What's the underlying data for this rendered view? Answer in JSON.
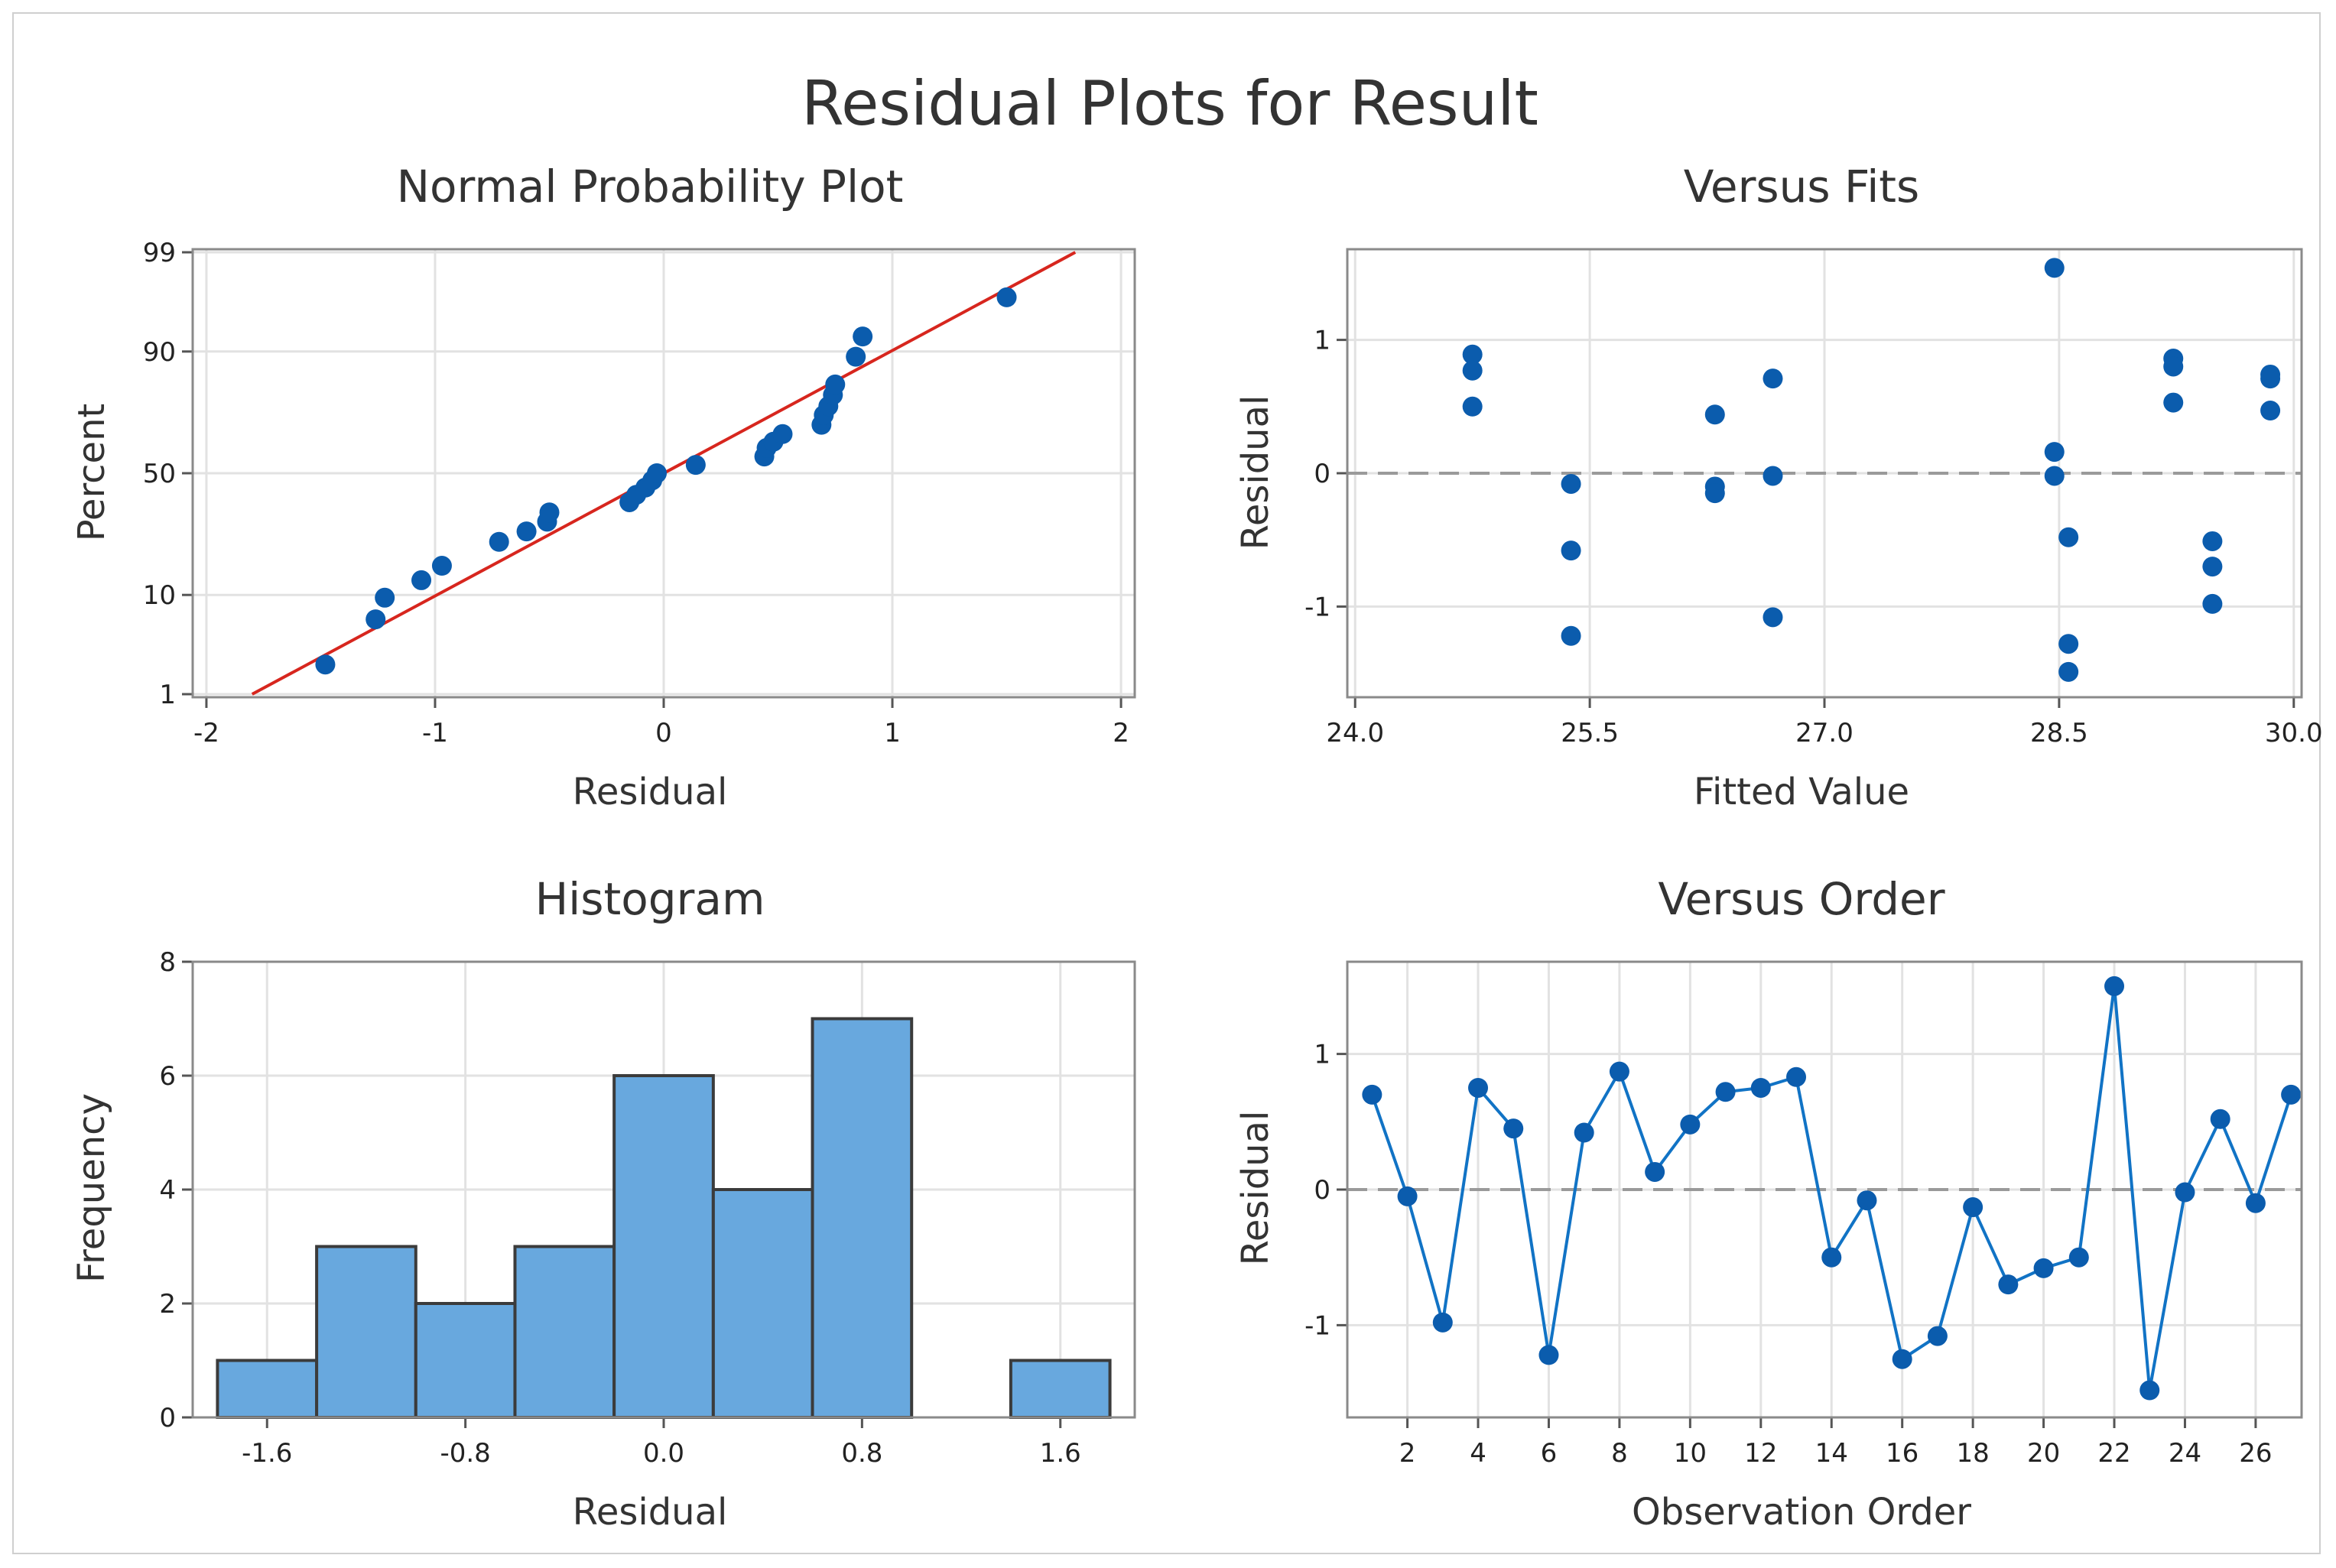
{
  "title": "Residual Plots for Result",
  "colors": {
    "marker": "#0b5cad",
    "line": "#1173c5",
    "fit_line": "#d7261e",
    "bar": "#68a8de",
    "bar_edge": "#3b3b3b",
    "reference": "#9a9a9a"
  },
  "chart_data": [
    {
      "type": "scatter",
      "title": "Normal Probability Plot",
      "xlabel": "Residual",
      "ylabel": "Percent",
      "xlim": [
        -2.06,
        2.06
      ],
      "x_ticks": [
        "-2",
        "-1",
        "0",
        "1",
        "2"
      ],
      "x_tick_values": [
        -2,
        -1,
        0,
        1,
        2
      ],
      "y_ticks": [
        "1",
        "10",
        "50",
        "90",
        "99"
      ],
      "y_tick_values": [
        1,
        10,
        50,
        90,
        99
      ],
      "y_scale": "normal-probability",
      "ylim": [
        1,
        99
      ],
      "fit_line": {
        "x": [
          -1.8,
          1.8
        ],
        "y": [
          1,
          99
        ]
      },
      "points": [
        {
          "x": -1.48,
          "y": 2.2
        },
        {
          "x": -1.26,
          "y": 6.2
        },
        {
          "x": -1.22,
          "y": 9.5
        },
        {
          "x": -1.06,
          "y": 13.0
        },
        {
          "x": -0.97,
          "y": 16.5
        },
        {
          "x": -0.72,
          "y": 23.5
        },
        {
          "x": -0.6,
          "y": 27.0
        },
        {
          "x": -0.51,
          "y": 30.5
        },
        {
          "x": -0.5,
          "y": 34.0
        },
        {
          "x": -0.15,
          "y": 38.0
        },
        {
          "x": -0.12,
          "y": 41.0
        },
        {
          "x": -0.08,
          "y": 44.0
        },
        {
          "x": -0.05,
          "y": 47.0
        },
        {
          "x": -0.03,
          "y": 50.0
        },
        {
          "x": 0.14,
          "y": 53.5
        },
        {
          "x": 0.44,
          "y": 57.0
        },
        {
          "x": 0.45,
          "y": 60.5
        },
        {
          "x": 0.48,
          "y": 63.0
        },
        {
          "x": 0.52,
          "y": 66.0
        },
        {
          "x": 0.69,
          "y": 69.5
        },
        {
          "x": 0.7,
          "y": 73.0
        },
        {
          "x": 0.72,
          "y": 76.0
        },
        {
          "x": 0.74,
          "y": 79.5
        },
        {
          "x": 0.75,
          "y": 82.5
        },
        {
          "x": 0.84,
          "y": 89.0
        },
        {
          "x": 0.87,
          "y": 92.5
        },
        {
          "x": 1.5,
          "y": 96.8
        }
      ]
    },
    {
      "type": "scatter",
      "title": "Versus Fits",
      "xlabel": "Fitted Value",
      "ylabel": "Residual",
      "xlim": [
        23.95,
        30.05
      ],
      "ylim": [
        -1.68,
        1.68
      ],
      "x_ticks": [
        "24.0",
        "25.5",
        "27.0",
        "28.5",
        "30.0"
      ],
      "x_tick_values": [
        24.0,
        25.5,
        27.0,
        28.5,
        30.0
      ],
      "y_ticks": [
        "-1",
        "0",
        "1"
      ],
      "y_tick_values": [
        -1,
        0,
        1
      ],
      "reference_line": 0,
      "points": [
        {
          "x": 24.75,
          "y": 0.89
        },
        {
          "x": 24.75,
          "y": 0.77
        },
        {
          "x": 24.75,
          "y": 0.5
        },
        {
          "x": 25.38,
          "y": -0.08
        },
        {
          "x": 25.38,
          "y": -0.58
        },
        {
          "x": 25.38,
          "y": -1.22
        },
        {
          "x": 26.3,
          "y": 0.44
        },
        {
          "x": 26.3,
          "y": -0.1
        },
        {
          "x": 26.3,
          "y": -0.15
        },
        {
          "x": 26.67,
          "y": 0.71
        },
        {
          "x": 26.67,
          "y": -0.02
        },
        {
          "x": 26.67,
          "y": -1.08
        },
        {
          "x": 28.47,
          "y": 1.54
        },
        {
          "x": 28.47,
          "y": 0.16
        },
        {
          "x": 28.47,
          "y": -0.02
        },
        {
          "x": 28.56,
          "y": -0.48
        },
        {
          "x": 28.56,
          "y": -1.28
        },
        {
          "x": 28.56,
          "y": -1.49
        },
        {
          "x": 29.23,
          "y": 0.86
        },
        {
          "x": 29.23,
          "y": 0.8
        },
        {
          "x": 29.23,
          "y": 0.53
        },
        {
          "x": 29.48,
          "y": -0.51
        },
        {
          "x": 29.48,
          "y": -0.7
        },
        {
          "x": 29.48,
          "y": -0.98
        },
        {
          "x": 29.85,
          "y": 0.74
        },
        {
          "x": 29.85,
          "y": 0.71
        },
        {
          "x": 29.85,
          "y": 0.47
        }
      ]
    },
    {
      "type": "bar",
      "title": "Histogram",
      "xlabel": "Residual",
      "ylabel": "Frequency",
      "xlim": [
        -1.9,
        1.9
      ],
      "ylim": [
        0,
        8
      ],
      "x_ticks": [
        "-1.6",
        "-0.8",
        "0.0",
        "0.8",
        "1.6"
      ],
      "x_tick_values": [
        -1.6,
        -0.8,
        0.0,
        0.8,
        1.6
      ],
      "y_ticks": [
        "0",
        "2",
        "4",
        "6",
        "8"
      ],
      "y_tick_values": [
        0,
        2,
        4,
        6,
        8
      ],
      "bin_width": 0.4,
      "bin_centers": [
        -1.6,
        -1.2,
        -0.8,
        -0.4,
        0.0,
        0.4,
        0.8,
        1.2,
        1.6
      ],
      "values": [
        1,
        3,
        2,
        3,
        6,
        4,
        7,
        0,
        1
      ]
    },
    {
      "type": "line",
      "title": "Versus Order",
      "xlabel": "Observation Order",
      "ylabel": "Residual",
      "xlim": [
        0.3,
        27.3
      ],
      "ylim": [
        -1.68,
        1.68
      ],
      "x_ticks": [
        "2",
        "4",
        "6",
        "8",
        "10",
        "12",
        "14",
        "16",
        "18",
        "20",
        "22",
        "24",
        "26"
      ],
      "x_tick_values": [
        2,
        4,
        6,
        8,
        10,
        12,
        14,
        16,
        18,
        20,
        22,
        24,
        26
      ],
      "y_ticks": [
        "-1",
        "0",
        "1"
      ],
      "y_tick_values": [
        -1,
        0,
        1
      ],
      "reference_line": 0,
      "x": [
        1,
        2,
        3,
        4,
        5,
        6,
        7,
        8,
        9,
        10,
        11,
        12,
        13,
        14,
        15,
        16,
        17,
        18,
        19,
        20,
        21,
        22,
        23,
        24,
        25,
        26,
        27
      ],
      "values": [
        0.7,
        -0.05,
        -0.98,
        0.75,
        0.45,
        -1.22,
        0.42,
        0.87,
        0.13,
        0.48,
        0.72,
        0.75,
        0.83,
        -0.5,
        -0.08,
        -1.25,
        -1.08,
        -0.13,
        -0.7,
        -0.58,
        -0.5,
        1.5,
        -1.48,
        -0.02,
        0.52,
        -0.1,
        0.7
      ]
    }
  ]
}
